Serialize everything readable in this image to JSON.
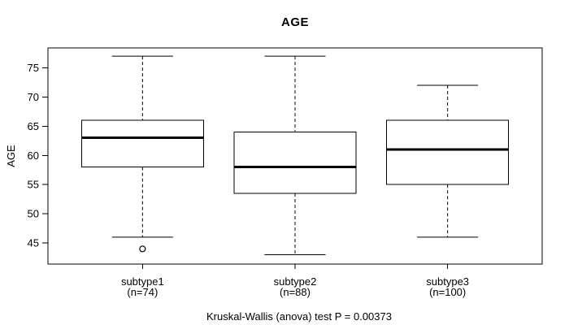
{
  "chart_data": {
    "type": "boxplot",
    "title": "AGE",
    "ylabel": "AGE",
    "xlabel": "",
    "caption": "Kruskal-Wallis (anova) test P = 0.00373",
    "yticks": [
      45,
      50,
      55,
      60,
      65,
      70,
      75
    ],
    "ylim": [
      41.4,
      78.4
    ],
    "xlim": [
      0.38,
      3.62
    ],
    "grid": "off",
    "legend": "none",
    "box_half_width": 0.4,
    "cap_half_width": 0.2,
    "groups": [
      {
        "label": "subtype1",
        "sublabel": "(n=74)",
        "position": 1,
        "lower_whisker": 46,
        "q1": 58,
        "median": 63,
        "q3": 66,
        "upper_whisker": 77,
        "outliers": [
          44
        ]
      },
      {
        "label": "subtype2",
        "sublabel": "(n=88)",
        "position": 2,
        "lower_whisker": 43,
        "q1": 53.5,
        "median": 58,
        "q3": 64,
        "upper_whisker": 77,
        "outliers": []
      },
      {
        "label": "subtype3",
        "sublabel": "(n=100)",
        "position": 3,
        "lower_whisker": 46,
        "q1": 55,
        "median": 61,
        "q3": 66,
        "upper_whisker": 72,
        "outliers": []
      }
    ],
    "colors": {
      "line": "#000000",
      "box_fill": "#ffffff",
      "background": "#ffffff"
    }
  }
}
